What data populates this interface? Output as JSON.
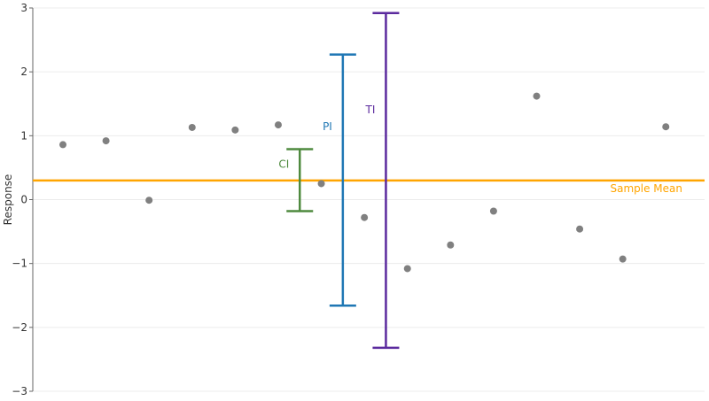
{
  "chart_data": {
    "type": "scatter",
    "title": "",
    "xlabel": "",
    "ylabel": "Response",
    "ylim": [
      -3,
      3
    ],
    "yticks": [
      -3,
      -2,
      -1,
      0,
      1,
      2,
      3
    ],
    "ytick_labels": [
      "−3",
      "−2",
      "−1",
      "0",
      "1",
      "2",
      "3"
    ],
    "xlim": [
      0.3,
      15.9
    ],
    "grid": true,
    "points": {
      "color": "#808080",
      "x": [
        1,
        2,
        3,
        4,
        5,
        6,
        7,
        8,
        9,
        10,
        11,
        12,
        13,
        14,
        15
      ],
      "y": [
        0.86,
        0.92,
        -0.01,
        1.13,
        1.09,
        1.17,
        0.25,
        -0.28,
        -1.08,
        -0.71,
        -0.18,
        1.62,
        -0.46,
        -0.93,
        1.14
      ]
    },
    "sample_mean": {
      "label": "Sample Mean",
      "value": 0.3,
      "color": "#FFA500"
    },
    "intervals": [
      {
        "label": "CI",
        "x": 6.5,
        "lower": -0.18,
        "upper": 0.79,
        "color": "#4E8A3E"
      },
      {
        "label": "PI",
        "x": 7.5,
        "lower": -1.66,
        "upper": 2.27,
        "color": "#1F77B4"
      },
      {
        "label": "TI",
        "x": 8.5,
        "lower": -2.32,
        "upper": 2.92,
        "color": "#5B2A9E"
      }
    ]
  }
}
